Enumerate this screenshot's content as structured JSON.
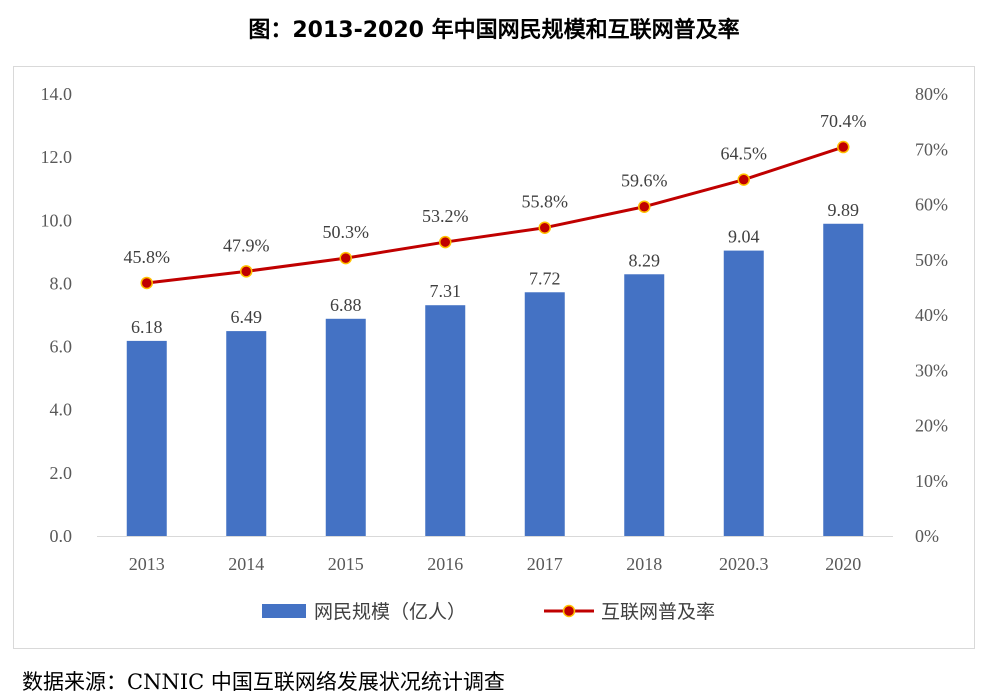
{
  "title": "图：2013-2020 年中国网民规模和互联网普及率",
  "source": "数据来源：CNNIC 中国互联网络发展状况统计调查",
  "colors": {
    "bar": "#4472c4",
    "line": "#c00000",
    "marker_fill": "#c00000",
    "marker_stroke": "#ffc000"
  },
  "chart_data": {
    "type": "bar",
    "title": "图：2013-2020 年中国网民规模和互联网普及率",
    "categories": [
      "2013",
      "2014",
      "2015",
      "2016",
      "2017",
      "2018",
      "2020.3",
      "2020"
    ],
    "series": [
      {
        "name": "网民规模（亿人）",
        "type": "bar",
        "axis": "left",
        "values": [
          6.18,
          6.49,
          6.88,
          7.31,
          7.72,
          8.29,
          9.04,
          9.89
        ],
        "labels": [
          "6.18",
          "6.49",
          "6.88",
          "7.31",
          "7.72",
          "8.29",
          "9.04",
          "9.89"
        ]
      },
      {
        "name": "互联网普及率",
        "type": "line",
        "axis": "right",
        "values": [
          45.8,
          47.9,
          50.3,
          53.2,
          55.8,
          59.6,
          64.5,
          70.4
        ],
        "labels": [
          "45.8%",
          "47.9%",
          "50.3%",
          "53.2%",
          "55.8%",
          "59.6%",
          "64.5%",
          "70.4%"
        ]
      }
    ],
    "y_left": {
      "range": [
        0,
        14
      ],
      "ticks": [
        "0.0",
        "2.0",
        "4.0",
        "6.0",
        "8.0",
        "10.0",
        "12.0",
        "14.0"
      ]
    },
    "y_right": {
      "range": [
        0,
        80
      ],
      "ticks": [
        "0%",
        "10%",
        "20%",
        "30%",
        "40%",
        "50%",
        "60%",
        "70%",
        "80%"
      ]
    },
    "legend_position": "bottom",
    "grid": false
  }
}
